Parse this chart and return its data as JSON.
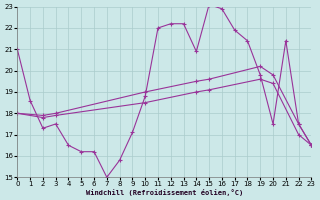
{
  "xlabel": "Windchill (Refroidissement éolien,°C)",
  "xlim": [
    0,
    23
  ],
  "ylim": [
    15,
    23
  ],
  "yticks": [
    15,
    16,
    17,
    18,
    19,
    20,
    21,
    22,
    23
  ],
  "xticks": [
    0,
    1,
    2,
    3,
    4,
    5,
    6,
    7,
    8,
    9,
    10,
    11,
    12,
    13,
    14,
    15,
    16,
    17,
    18,
    19,
    20,
    21,
    22,
    23
  ],
  "bg_color": "#cce8e8",
  "grid_color": "#aacccc",
  "line_color": "#993399",
  "line1_x": [
    0,
    1,
    2,
    3,
    4,
    5,
    6,
    7,
    8,
    9,
    10,
    11,
    12,
    13,
    14,
    15,
    16,
    17,
    18,
    19,
    20,
    21,
    22,
    23
  ],
  "line1_y": [
    21.0,
    18.6,
    17.3,
    17.5,
    16.5,
    16.2,
    16.2,
    15.0,
    15.8,
    17.1,
    18.8,
    22.0,
    22.2,
    22.2,
    20.9,
    23.1,
    22.9,
    21.9,
    21.4,
    19.8,
    17.5,
    21.4,
    17.5,
    16.5
  ],
  "line2_x": [
    0,
    2,
    3,
    10,
    14,
    15,
    19,
    20,
    22,
    23
  ],
  "line2_y": [
    18.0,
    17.9,
    18.0,
    19.0,
    19.5,
    19.6,
    20.2,
    19.8,
    17.5,
    16.5
  ],
  "line3_x": [
    0,
    2,
    3,
    10,
    14,
    15,
    19,
    20,
    22,
    23
  ],
  "line3_y": [
    18.0,
    17.8,
    17.9,
    18.5,
    19.0,
    19.1,
    19.6,
    19.4,
    17.0,
    16.5
  ]
}
